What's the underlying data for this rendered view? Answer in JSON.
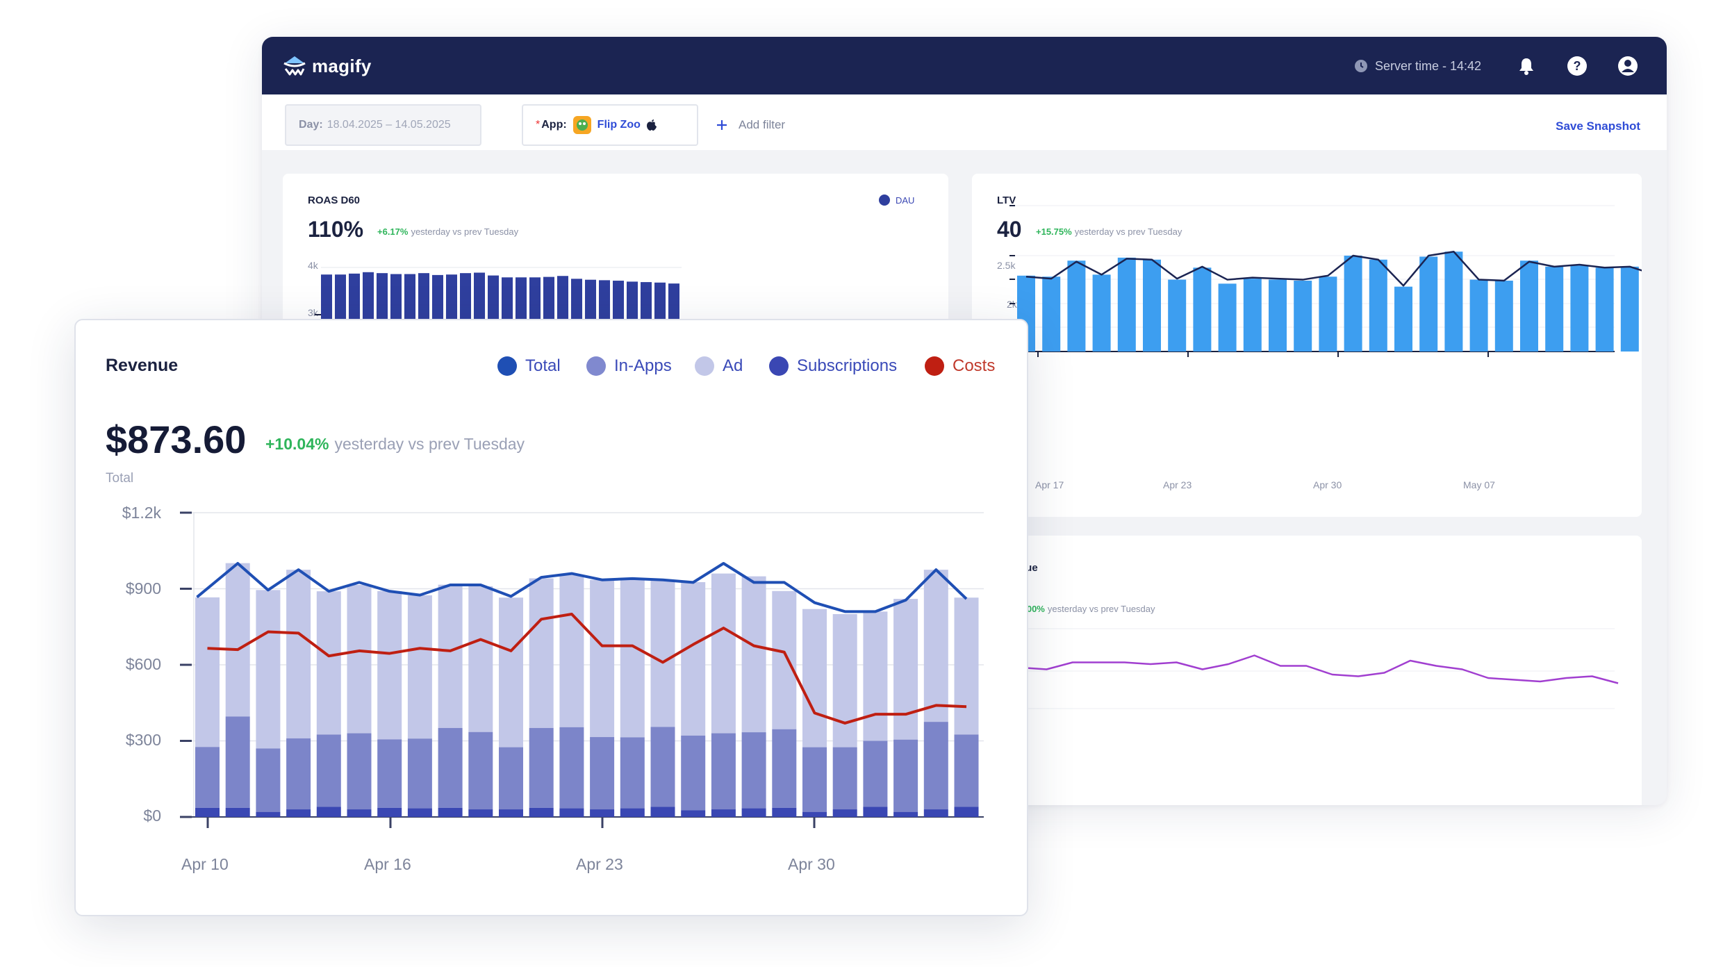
{
  "header": {
    "logo_text": "magify",
    "server_time": "Server time - 14:42",
    "icons": [
      "clock-icon",
      "bell-icon",
      "help-icon",
      "user-icon"
    ]
  },
  "filters": {
    "day_label": "Day:",
    "day_value": "18.04.2025 – 14.05.2025",
    "app_required": "*",
    "app_label": "App:",
    "app_name": "Flip Zoo",
    "add_filter": "Add filter",
    "save_snapshot": "Save Snapshot"
  },
  "roas_card": {
    "title": "ROAS D60",
    "legend": "DAU",
    "value": "110%",
    "delta": "+6.17%",
    "delta_text": "yesterday vs prev Tuesday",
    "y_ticks": [
      "4k",
      "3k"
    ]
  },
  "ltv_card": {
    "title": "LTV",
    "value": "40",
    "delta": "+15.75%",
    "delta_text": "yesterday vs prev Tuesday",
    "y_ticks": [
      "2.5k",
      "2k"
    ],
    "x_ticks": [
      "Apr 17",
      "Apr 23",
      "Apr 30",
      "May 07"
    ]
  },
  "revenue_small_card": {
    "title_fragment": "nue",
    "delta": "0.00%",
    "delta_text": "yesterday vs prev Tuesday"
  },
  "revenue_card": {
    "title": "Revenue",
    "value": "$873.60",
    "delta": "+10.04%",
    "delta_text": "yesterday vs prev Tuesday",
    "subtitle": "Total",
    "legend": [
      {
        "label": "Total",
        "color": "#1f4fb4"
      },
      {
        "label": "In-Apps",
        "color": "#8089cf"
      },
      {
        "label": "Ad",
        "color": "#c2c7e8"
      },
      {
        "label": "Subscriptions",
        "color": "#3a47b3"
      },
      {
        "label": "Costs",
        "color": "#bf1f12"
      }
    ]
  },
  "chart_data": [
    {
      "type": "bar",
      "title": "ROAS D60",
      "legend": [
        "DAU"
      ],
      "y_ticks": [
        "4k",
        "3k"
      ],
      "series": [
        {
          "name": "DAU",
          "values": [
            3850,
            3850,
            3870,
            3900,
            3880,
            3860,
            3860,
            3880,
            3840,
            3850,
            3880,
            3890,
            3830,
            3790,
            3790,
            3790,
            3800,
            3820,
            3760,
            3740,
            3730,
            3720,
            3700,
            3690,
            3680,
            3660
          ]
        }
      ]
    },
    {
      "type": "bar",
      "title": "LTV",
      "x_ticks": [
        "Apr 17",
        "Apr 23",
        "Apr 30",
        "May 07"
      ],
      "y_ticks": [
        "2.5k",
        "2k"
      ],
      "ylim": [
        1000,
        2500
      ],
      "values": [
        1800,
        1790,
        1950,
        1810,
        1980,
        1960,
        1760,
        1880,
        1720,
        1770,
        1760,
        1750,
        1790,
        2000,
        1960,
        1690,
        1990,
        2040,
        1760,
        1750,
        1950,
        1890,
        1900,
        1880,
        1890,
        1800
      ],
      "line": [
        1790,
        1770,
        1940,
        1810,
        1970,
        1960,
        1770,
        1890,
        1760,
        1780,
        1770,
        1760,
        1800,
        2000,
        1960,
        1700,
        2000,
        2040,
        1760,
        1750,
        1940,
        1890,
        1910,
        1880,
        1890,
        1810
      ]
    },
    {
      "type": "line",
      "title": "Revenue",
      "values": [
        0.52,
        0.51,
        0.55,
        0.55,
        0.55,
        0.54,
        0.55,
        0.51,
        0.54,
        0.59,
        0.53,
        0.53,
        0.48,
        0.47,
        0.49,
        0.56,
        0.53,
        0.51,
        0.46,
        0.45,
        0.44,
        0.46,
        0.47,
        0.43
      ]
    },
    {
      "type": "bar",
      "title": "Revenue",
      "x_ticks": [
        "Apr 10",
        "Apr 16",
        "Apr 23",
        "Apr 30"
      ],
      "y_ticks": [
        "$1.2k",
        "$900",
        "$600",
        "$300",
        "$0"
      ],
      "ylim": [
        0,
        1200
      ],
      "series": [
        {
          "name": "Subscriptions",
          "values": [
            36,
            36,
            20,
            30,
            40,
            30,
            36,
            34,
            36,
            30,
            30,
            36,
            34,
            30,
            34,
            40,
            26,
            30,
            34,
            36,
            20,
            30,
            40,
            20,
            30,
            40
          ]
        },
        {
          "name": "In-Apps",
          "values": [
            240,
            360,
            250,
            280,
            285,
            300,
            270,
            275,
            315,
            305,
            245,
            315,
            320,
            285,
            280,
            315,
            295,
            300,
            300,
            310,
            255,
            245,
            260,
            285,
            345,
            285
          ]
        },
        {
          "name": "Ad",
          "values": [
            590,
            605,
            625,
            665,
            565,
            585,
            585,
            565,
            565,
            575,
            590,
            590,
            600,
            620,
            625,
            580,
            605,
            630,
            615,
            545,
            545,
            525,
            510,
            555,
            600,
            540
          ]
        },
        {
          "name": "Total",
          "values": [
            867,
            1000,
            895,
            975,
            890,
            925,
            890,
            875,
            915,
            915,
            870,
            945,
            960,
            935,
            940,
            935,
            925,
            1000,
            925,
            925,
            845,
            810,
            810,
            855,
            975,
            860
          ]
        },
        {
          "name": "Costs",
          "values": [
            665,
            660,
            730,
            725,
            635,
            655,
            645,
            665,
            655,
            700,
            655,
            780,
            800,
            675,
            675,
            610,
            680,
            745,
            675,
            650,
            410,
            370,
            405,
            405,
            440,
            435
          ]
        }
      ]
    }
  ]
}
